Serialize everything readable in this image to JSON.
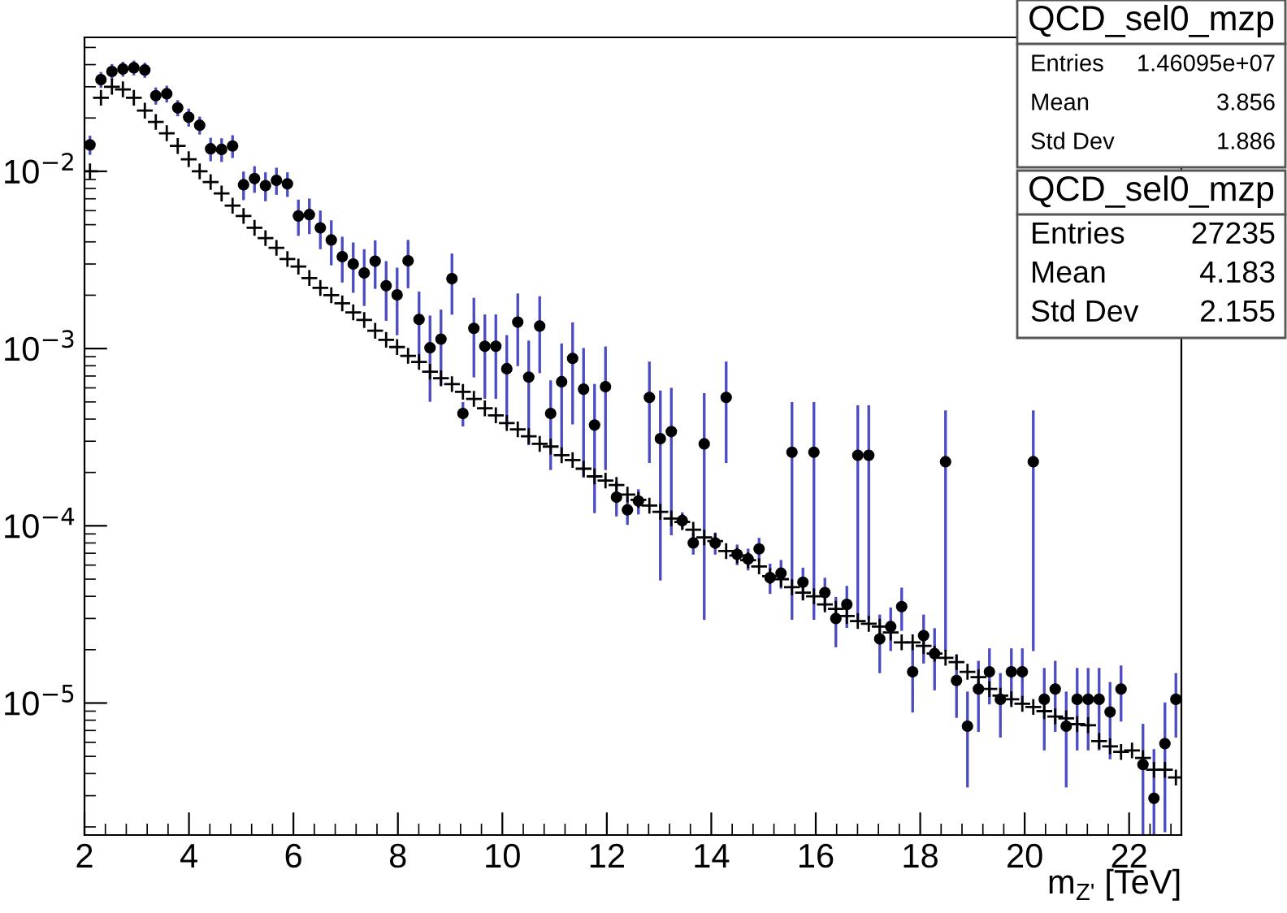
{
  "chart_data": {
    "type": "scatter",
    "xlabel": "m$_{Z'}$ [TeV]",
    "xlim": [
      2,
      23
    ],
    "xticks": [
      2,
      4,
      6,
      8,
      10,
      12,
      14,
      16,
      18,
      20,
      22
    ],
    "ylim": [
      1.8e-06,
      0.057
    ],
    "yticks": [
      {
        "value": 1e-05,
        "label": "10$^{−5}$"
      },
      {
        "value": 0.0001,
        "label": "10$^{−4}$"
      },
      {
        "value": 0.001,
        "label": "10$^{−3}$"
      },
      {
        "value": 0.01,
        "label": "10$^{−2}$"
      }
    ],
    "log": "y",
    "grid": false,
    "annotations": [
      "QCD_sel0_mzp",
      "Entries",
      "1.46095e+07",
      "Mean",
      "3.856",
      "Std Dev",
      "1.886",
      "QCD_sel0_mzp",
      "Entries",
      "27235",
      "Mean",
      "4.183",
      "Std Dev",
      "2.155"
    ],
    "x": [
      2.105,
      2.315,
      2.525,
      2.735,
      2.945,
      3.155,
      3.365,
      3.575,
      3.785,
      3.995,
      4.205,
      4.415,
      4.625,
      4.835,
      5.045,
      5.255,
      5.465,
      5.675,
      5.885,
      6.095,
      6.305,
      6.515,
      6.725,
      6.935,
      7.145,
      7.355,
      7.565,
      7.775,
      7.985,
      8.195,
      8.405,
      8.615,
      8.825,
      9.035,
      9.245,
      9.455,
      9.665,
      9.875,
      10.085,
      10.295,
      10.505,
      10.715,
      10.925,
      11.135,
      11.345,
      11.555,
      11.765,
      11.975,
      12.185,
      12.395,
      12.605,
      12.815,
      13.025,
      13.235,
      13.445,
      13.655,
      13.865,
      14.075,
      14.285,
      14.495,
      14.705,
      14.915,
      15.125,
      15.335,
      15.545,
      15.755,
      15.965,
      16.175,
      16.385,
      16.595,
      16.805,
      17.015,
      17.225,
      17.435,
      17.645,
      17.855,
      18.065,
      18.275,
      18.485,
      18.695,
      18.905,
      19.115,
      19.325,
      19.535,
      19.745,
      19.955,
      20.165,
      20.375,
      20.585,
      20.795,
      21.005,
      21.215,
      21.425,
      21.635,
      21.845,
      22.055,
      22.265,
      22.475,
      22.685,
      22.895
    ],
    "series": [
      {
        "marker": "cross",
        "color": "#000000",
        "values": [
          0.01,
          0.026,
          0.03,
          0.029,
          0.026,
          0.022,
          0.019,
          0.0164,
          0.0139,
          0.0117,
          0.01,
          0.0087,
          0.0075,
          0.0064,
          0.0056,
          0.0048,
          0.0042,
          0.0037,
          0.0032,
          0.0029,
          0.0025,
          0.0022,
          0.002,
          0.0018,
          0.0016,
          0.00145,
          0.00126,
          0.00112,
          0.00102,
          0.00091,
          0.00084,
          0.00074,
          0.00068,
          0.00063,
          0.00057,
          0.00052,
          0.00046,
          0.00042,
          0.00038,
          0.00035,
          0.00032,
          0.00029,
          0.00028,
          0.00025,
          0.000235,
          0.00021,
          0.00019,
          0.00018,
          0.00017,
          0.00015,
          0.00014,
          0.00013,
          0.00012,
          0.00011,
          0.000105,
          9.5e-05,
          8.6e-05,
          8.2e-05,
          7.2e-05,
          6.8e-05,
          6.4e-05,
          5.9e-05,
          5.2e-05,
          5e-05,
          4.5e-05,
          4.2e-05,
          4e-05,
          3.6e-05,
          3.4e-05,
          3.1e-05,
          2.9e-05,
          2.8e-05,
          2.7e-05,
          2.5e-05,
          2.2e-05,
          2.2e-05,
          2.1e-05,
          1.9e-05,
          1.8e-05,
          1.7e-05,
          1.5e-05,
          1.4e-05,
          1.2e-05,
          1.1e-05,
          1.05e-05,
          9.9e-06,
          9.5e-06,
          9e-06,
          8.4e-06,
          8.2e-06,
          7.6e-06,
          7.5e-06,
          6.1e-06,
          5.7e-06,
          5.3e-06,
          5.4e-06,
          4.9e-06,
          4.2e-06,
          4.2e-06,
          3.8e-06
        ]
      },
      {
        "marker": "circle",
        "color": "#000000",
        "values": [
          0.0141,
          0.0329,
          0.0366,
          0.0378,
          0.0384,
          0.0373,
          0.0267,
          0.0274,
          0.0228,
          0.0202,
          0.0182,
          0.0134,
          0.0133,
          0.0139,
          0.0084,
          0.0091,
          0.0083,
          0.0089,
          0.0085,
          0.0056,
          0.0057,
          0.0048,
          0.0041,
          0.0033,
          0.003,
          0.00267,
          0.00311,
          0.00226,
          0.00201,
          0.00313,
          0.00146,
          0.00101,
          0.00113,
          0.00248,
          0.00043,
          0.0013,
          0.00103,
          0.00103,
          0.00077,
          0.00141,
          0.00069,
          0.00134,
          0.00043,
          0.00065,
          0.00088,
          0.00059,
          0.00037,
          0.00061,
          0.000145,
          0.000123,
          0.000138,
          0.00053,
          0.00031,
          0.00034,
          0.000107,
          8e-05,
          0.00029,
          8e-05,
          0.00053,
          6.9e-05,
          6.5e-05,
          7.4e-05,
          5.1e-05,
          5.4e-05,
          0.00026,
          4.8e-05,
          0.00026,
          4.2e-05,
          3e-05,
          3.6e-05,
          0.00025,
          0.00025,
          2.3e-05,
          2.7e-05,
          3.5e-05,
          1.5e-05,
          2.4e-05,
          1.9e-05,
          0.00023,
          1.34e-05,
          7.4e-06,
          1.2e-05,
          1.5e-05,
          1.05e-05,
          1.5e-05,
          1.5e-05,
          0.00023,
          1.05e-05,
          1.2e-05,
          7.4e-06,
          1.05e-05,
          1.05e-05,
          1.05e-05,
          8.9e-06,
          1.2e-05,
          null,
          4.5e-06,
          2.9e-06,
          5.9e-06,
          1.05e-05
        ],
        "errors": [
          0.0015,
          0.0028,
          0.003,
          0.003,
          0.003,
          0.003,
          0.0025,
          0.0025,
          0.002,
          0.002,
          0.0018,
          0.0018,
          0.0018,
          0.0018,
          0.0014,
          0.0014,
          0.0014,
          0.0014,
          0.0012,
          0.0012,
          0.0012,
          0.0011,
          0.0011,
          0.0009,
          0.0009,
          0.0009,
          0.0009,
          0.0008,
          0.0008,
          0.0009,
          0.0006,
          0.0005,
          0.0005,
          0.0009,
          6e-05,
          0.0006,
          0.0005,
          0.0005,
          0.0004,
          0.0006,
          0.0004,
          0.0006,
          0.00022,
          0.0004,
          0.0005,
          0.0004,
          0.00025,
          0.0004,
          3e-05,
          2e-05,
          2e-05,
          0.0003,
          0.00026,
          0.00025,
          1e-05,
          1e-05,
          0.00026,
          1e-05,
          0.0003,
          8e-06,
          8e-06,
          1e-05,
          9e-06,
          9e-06,
          0.00023,
          9e-06,
          0.00023,
          8e-06,
          9e-06,
          9e-06,
          0.00022,
          0.00022,
          8e-06,
          7e-06,
          9e-06,
          6e-06,
          7e-06,
          7e-06,
          0.00021,
          5e-06,
          4e-06,
          5e-06,
          5e-06,
          4e-06,
          5e-06,
          5e-06,
          0.00021,
          5e-06,
          5e-06,
          4e-06,
          5e-06,
          5e-06,
          5e-06,
          4e-06,
          4e-06,
          null,
          [
            1.8e-06,
            7.5e-06
          ],
          [
            1.8e-06,
            5.4e-06
          ],
          4e-06,
          4e-06
        ]
      }
    ]
  }
}
